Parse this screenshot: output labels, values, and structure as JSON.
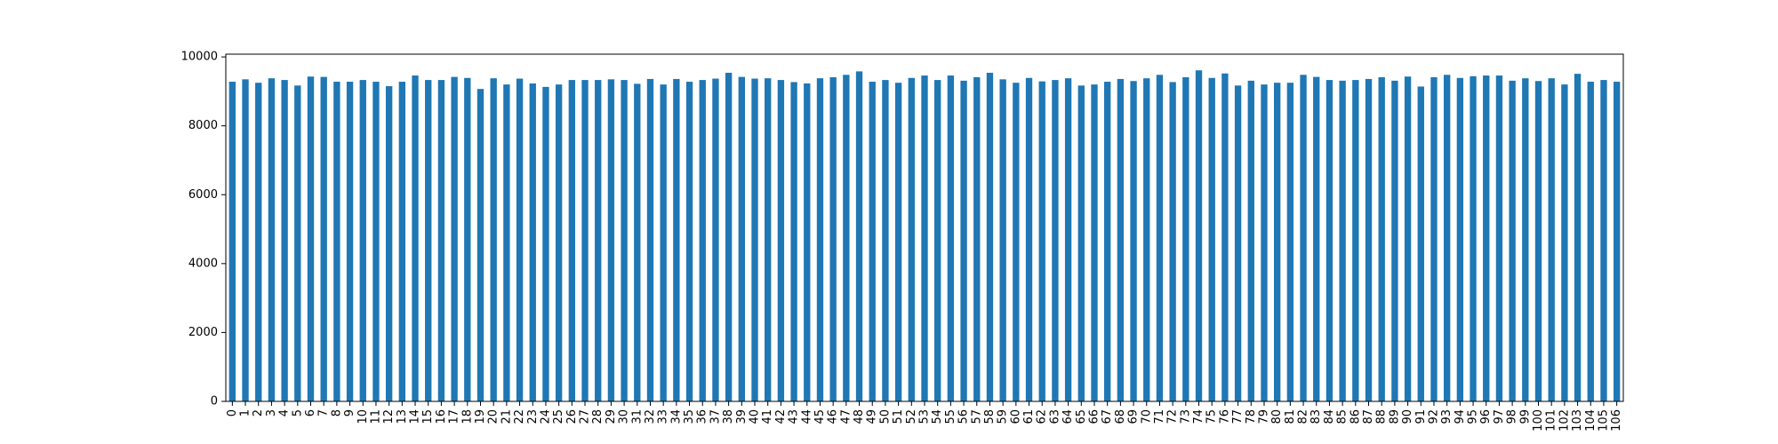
{
  "chart_data": {
    "type": "bar",
    "categories": [
      "0",
      "1",
      "2",
      "3",
      "4",
      "5",
      "6",
      "7",
      "8",
      "9",
      "10",
      "11",
      "12",
      "13",
      "14",
      "15",
      "16",
      "17",
      "18",
      "19",
      "20",
      "21",
      "22",
      "23",
      "24",
      "25",
      "26",
      "27",
      "28",
      "29",
      "30",
      "31",
      "32",
      "33",
      "34",
      "35",
      "36",
      "37",
      "38",
      "39",
      "40",
      "41",
      "42",
      "43",
      "44",
      "45",
      "46",
      "47",
      "48",
      "49",
      "50",
      "51",
      "52",
      "53",
      "54",
      "55",
      "56",
      "57",
      "58",
      "59",
      "60",
      "61",
      "62",
      "63",
      "64",
      "65",
      "66",
      "67",
      "68",
      "69",
      "70",
      "71",
      "72",
      "73",
      "74",
      "75",
      "76",
      "77",
      "78",
      "79",
      "80",
      "81",
      "82",
      "83",
      "84",
      "85",
      "86",
      "87",
      "88",
      "89",
      "90",
      "91",
      "92",
      "93",
      "94",
      "95",
      "96",
      "97",
      "98",
      "99",
      "100",
      "101",
      "102",
      "103",
      "104",
      "105",
      "106"
    ],
    "values": [
      9280,
      9350,
      9250,
      9380,
      9330,
      9170,
      9430,
      9420,
      9280,
      9280,
      9330,
      9280,
      9150,
      9280,
      9460,
      9330,
      9330,
      9420,
      9390,
      9070,
      9380,
      9200,
      9370,
      9230,
      9130,
      9200,
      9330,
      9330,
      9330,
      9350,
      9330,
      9220,
      9360,
      9200,
      9360,
      9280,
      9330,
      9370,
      9540,
      9420,
      9370,
      9380,
      9330,
      9270,
      9230,
      9380,
      9410,
      9480,
      9580,
      9280,
      9330,
      9250,
      9390,
      9460,
      9330,
      9460,
      9310,
      9410,
      9540,
      9350,
      9250,
      9390,
      9290,
      9330,
      9380,
      9170,
      9200,
      9280,
      9360,
      9300,
      9380,
      9480,
      9270,
      9410,
      9610,
      9390,
      9520,
      9170,
      9310,
      9200,
      9250,
      9250,
      9480,
      9420,
      9330,
      9310,
      9330,
      9360,
      9410,
      9310,
      9430,
      9140,
      9410,
      9480,
      9390,
      9440,
      9460,
      9460,
      9310,
      9380,
      9300,
      9380,
      9200,
      9510,
      9280,
      9330,
      9280
    ],
    "color": "#1f77b4",
    "ylim": [
      0,
      10080
    ],
    "yticks": [
      0,
      2000,
      4000,
      6000,
      8000,
      10000
    ],
    "grid": false
  }
}
